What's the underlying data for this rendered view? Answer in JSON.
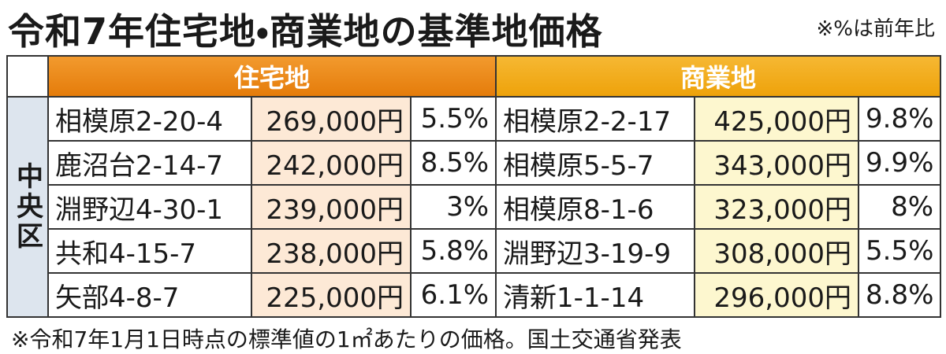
{
  "header": {
    "title": "令和7年住宅地・商業地の基準地価格",
    "note": "※%は前年比"
  },
  "table": {
    "headers": [
      "住宅地",
      "商業地"
    ],
    "district": "中央区",
    "rows": [
      [
        "相模原2-20-4",
        "269,000円",
        "5.5%",
        "相模原2-2-17",
        "425,000円",
        "9.8%"
      ],
      [
        "鹿沼台2-14-7",
        "242,000円",
        "8.5%",
        "相模原5-5-7",
        "343,000円",
        "9.9%"
      ],
      [
        "淵野辺4-30-1",
        "239,000円",
        "3%",
        "相模原8-1-6",
        "323,000円",
        "8%"
      ],
      [
        "共和4-15-7",
        "238,000円",
        "5.8%",
        "淵野辺3-19-9",
        "308,000円",
        "5.5%"
      ],
      [
        "矢部4-8-7",
        "225,000円",
        "6.1%",
        "清新1-1-14",
        "296,000円",
        "8.8%"
      ]
    ]
  },
  "footer": "※令和7年1月1日時点の標準値の1㎡あたりの価格。国土交通省発表"
}
